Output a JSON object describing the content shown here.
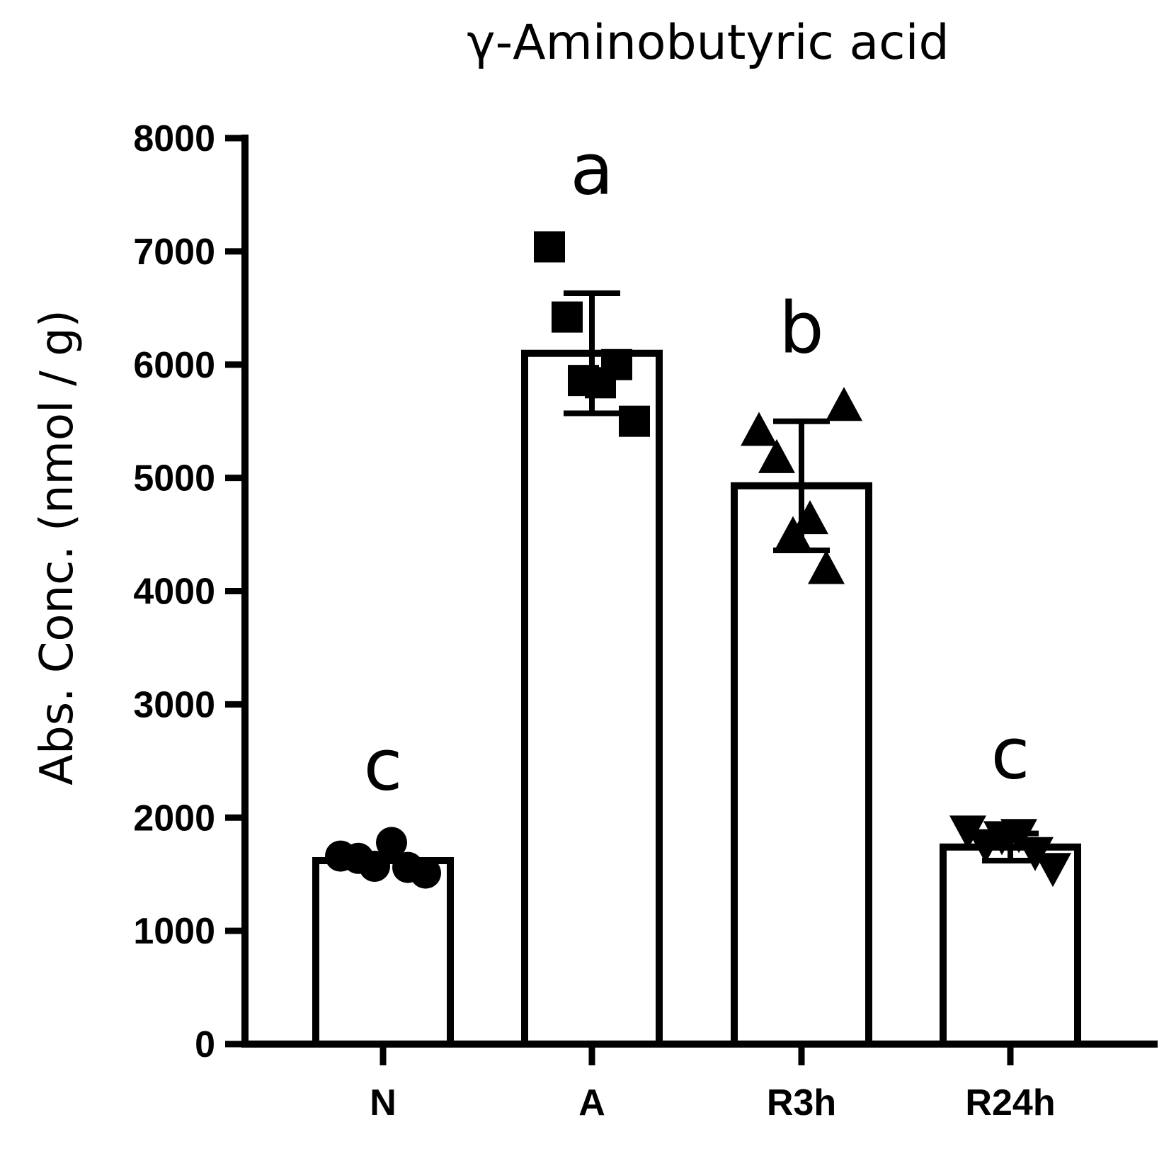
{
  "chart_data": {
    "type": "bar",
    "title": "γ-Aminobutyric acid",
    "xlabel": "",
    "ylabel": "Abs. Conc. (nmol / g)",
    "ylim": [
      0,
      8000
    ],
    "yticks": [
      "0",
      "1000",
      "2000",
      "3000",
      "4000",
      "5000",
      "6000",
      "7000",
      "8000"
    ],
    "grid": false,
    "legend": "none",
    "categories": [
      "N",
      "A",
      "R3h",
      "R24h"
    ],
    "bar_fill": "#ffffff",
    "bar_stroke": "#000000",
    "series": [
      {
        "values": [
          1620,
          6100,
          4930,
          1740
        ],
        "error_sd": [
          0,
          530,
          570,
          120
        ],
        "significance": [
          "c",
          "a",
          "b",
          "c"
        ],
        "markers": [
          "circle",
          "square",
          "triangle-up",
          "triangle-down"
        ],
        "points": [
          [
            1660,
            1640,
            1570,
            1780,
            1560,
            1510
          ],
          [
            7040,
            6420,
            5860,
            5840,
            6000,
            5500
          ],
          [
            5420,
            5180,
            4500,
            4640,
            4200,
            5640
          ],
          [
            1880,
            1760,
            1830,
            1850,
            1690,
            1550
          ]
        ]
      }
    ]
  }
}
